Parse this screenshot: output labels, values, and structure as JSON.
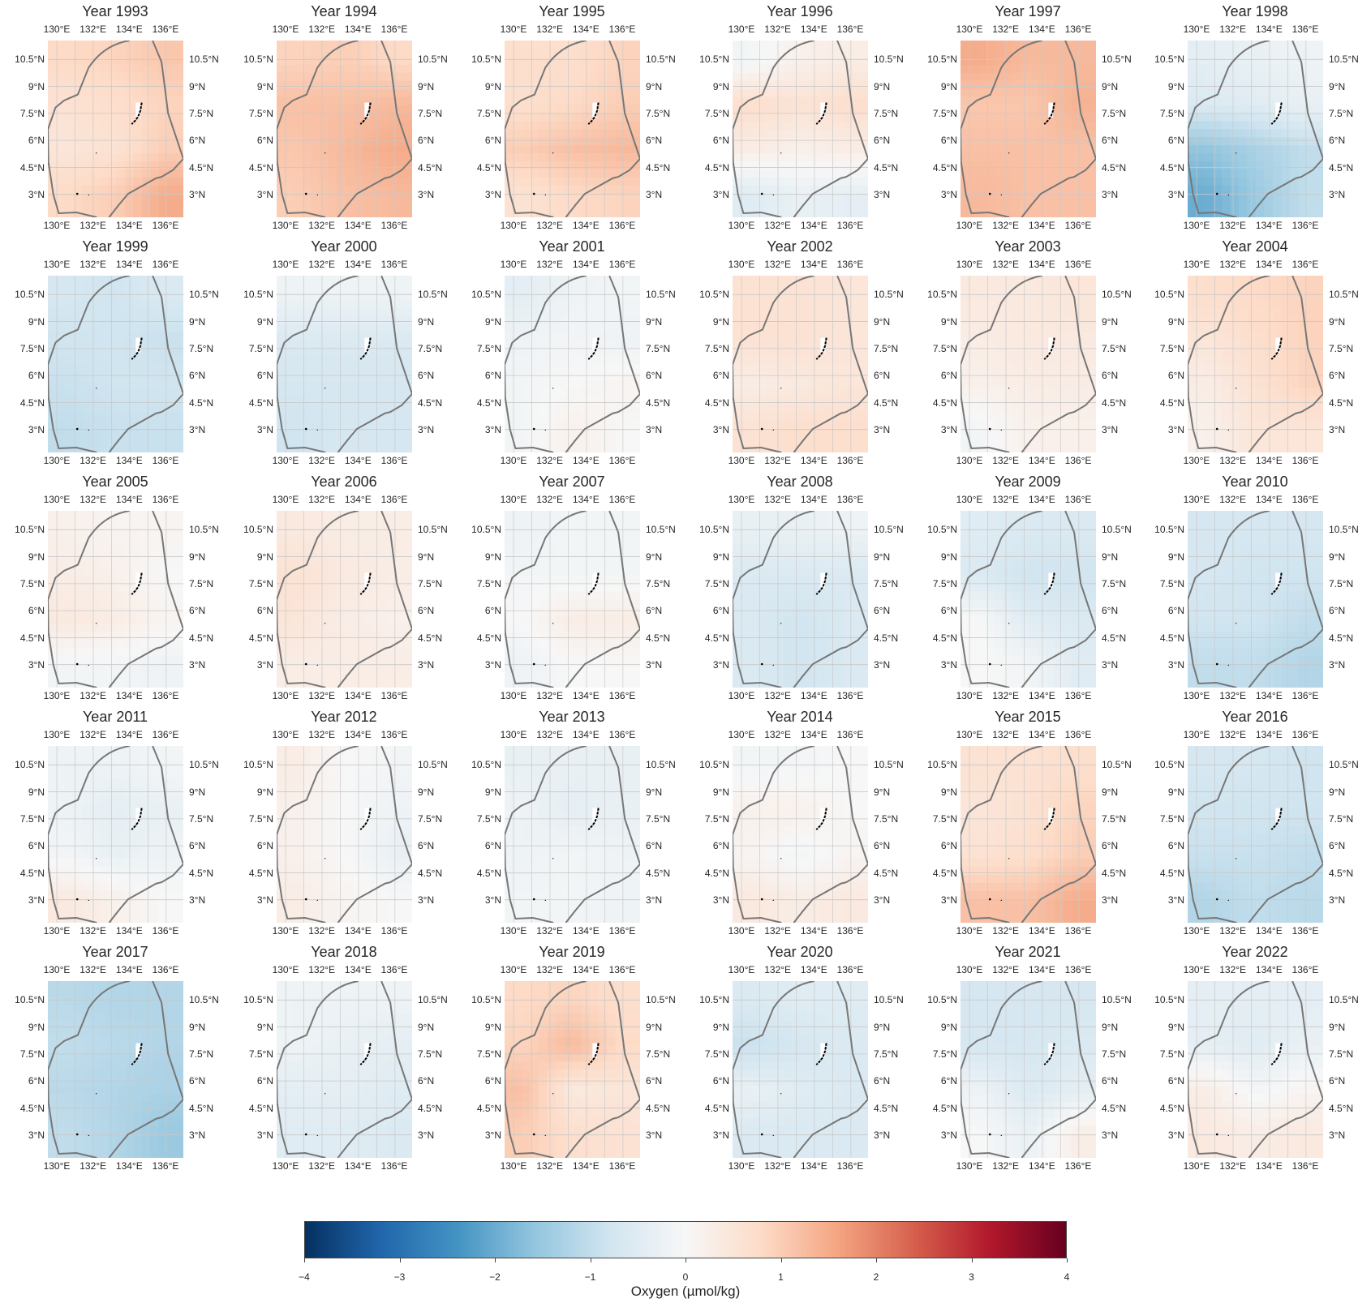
{
  "chart_data": {
    "type": "heatmap",
    "layout": "6x5 small-multiple maps",
    "lon_ticks": [
      "130°E",
      "132°E",
      "134°E",
      "136°E"
    ],
    "lat_ticks": [
      "3°N",
      "4.5°N",
      "6°N",
      "7.5°N",
      "9°N",
      "10.5°N"
    ],
    "lon_range": [
      129.5,
      137.0
    ],
    "lat_range": [
      1.7,
      11.55
    ],
    "grid": true,
    "note_grid_values": "coarse estimated anomaly field, rows north-to-south (approx 10.5N, 8N, 5.5N, 3N), cols west/center/east",
    "colorbar": {
      "label": "Oxygen (µmol/kg)",
      "colormap": "RdBu_r",
      "range": [
        -4,
        4
      ],
      "ticks": [
        "−4",
        "−3",
        "−2",
        "−1",
        "0",
        "1",
        "2",
        "3",
        "4"
      ],
      "colors": [
        "#053061",
        "#2166ac",
        "#4393c3",
        "#92c5de",
        "#d1e5f0",
        "#f7f7f7",
        "#fddbc7",
        "#f4a582",
        "#d6604d",
        "#b2182b",
        "#67001f"
      ]
    },
    "panels": [
      {
        "title": "Year 1993",
        "field": [
          [
            0.8,
            0.9,
            1.1
          ],
          [
            0.6,
            0.7,
            0.9
          ],
          [
            0.5,
            0.6,
            1.0
          ],
          [
            0.8,
            1.0,
            1.5
          ]
        ]
      },
      {
        "title": "Year 1994",
        "field": [
          [
            0.9,
            1.0,
            0.8
          ],
          [
            1.2,
            1.2,
            1.3
          ],
          [
            1.1,
            1.3,
            1.5
          ],
          [
            1.0,
            1.2,
            1.3
          ]
        ]
      },
      {
        "title": "Year 1995",
        "field": [
          [
            0.7,
            0.7,
            0.9
          ],
          [
            0.7,
            0.8,
            1.0
          ],
          [
            1.0,
            1.2,
            1.3
          ],
          [
            0.6,
            0.8,
            0.9
          ]
        ]
      },
      {
        "title": "Year 1996",
        "field": [
          [
            -0.1,
            0.2,
            0.3
          ],
          [
            0.7,
            0.6,
            0.7
          ],
          [
            0.3,
            0.2,
            0.3
          ],
          [
            -0.5,
            -0.3,
            -0.4
          ]
        ]
      },
      {
        "title": "Year 1997",
        "field": [
          [
            1.5,
            1.3,
            1.3
          ],
          [
            1.1,
            1.1,
            1.4
          ],
          [
            1.2,
            1.2,
            1.2
          ],
          [
            1.3,
            1.2,
            1.2
          ]
        ]
      },
      {
        "title": "Year 1998",
        "field": [
          [
            -0.4,
            -0.3,
            -0.2
          ],
          [
            -0.6,
            -0.5,
            -0.3
          ],
          [
            -1.6,
            -1.3,
            -1.0
          ],
          [
            -2.0,
            -1.5,
            -1.0
          ]
        ]
      },
      {
        "title": "Year 1999",
        "field": [
          [
            -0.7,
            -0.8,
            -0.6
          ],
          [
            -0.8,
            -0.8,
            -0.9
          ],
          [
            -0.9,
            -0.8,
            -0.8
          ],
          [
            -1.0,
            -0.9,
            -0.9
          ]
        ]
      },
      {
        "title": "Year 2000",
        "field": [
          [
            -0.2,
            -0.2,
            -0.2
          ],
          [
            -0.6,
            -0.6,
            -0.6
          ],
          [
            -0.7,
            -0.7,
            -0.7
          ],
          [
            -0.8,
            -0.7,
            -0.7
          ]
        ]
      },
      {
        "title": "Year 2001",
        "field": [
          [
            -0.4,
            -0.2,
            -0.1
          ],
          [
            -0.2,
            -0.1,
            -0.2
          ],
          [
            -0.1,
            0.0,
            0.1
          ],
          [
            -0.1,
            0.2,
            0.0
          ]
        ]
      },
      {
        "title": "Year 2002",
        "field": [
          [
            0.6,
            0.6,
            0.5
          ],
          [
            0.6,
            0.6,
            0.5
          ],
          [
            0.3,
            0.4,
            0.5
          ],
          [
            0.6,
            0.7,
            0.7
          ]
        ]
      },
      {
        "title": "Year 2003",
        "field": [
          [
            0.4,
            0.4,
            0.5
          ],
          [
            0.3,
            0.4,
            0.4
          ],
          [
            0.2,
            0.3,
            0.3
          ],
          [
            -0.1,
            0.2,
            0.2
          ]
        ]
      },
      {
        "title": "Year 2004",
        "field": [
          [
            0.7,
            0.8,
            0.9
          ],
          [
            0.5,
            0.7,
            0.9
          ],
          [
            0.3,
            0.6,
            0.9
          ],
          [
            0.2,
            0.5,
            0.5
          ]
        ]
      },
      {
        "title": "Year 2005",
        "field": [
          [
            0.2,
            0.1,
            0.1
          ],
          [
            0.3,
            0.2,
            0.0
          ],
          [
            0.4,
            0.3,
            0.1
          ],
          [
            -0.1,
            -0.1,
            -0.2
          ]
        ]
      },
      {
        "title": "Year 2006",
        "field": [
          [
            0.4,
            0.3,
            0.3
          ],
          [
            0.6,
            0.4,
            0.3
          ],
          [
            0.5,
            0.3,
            0.2
          ],
          [
            0.3,
            0.3,
            0.3
          ]
        ]
      },
      {
        "title": "Year 2007",
        "field": [
          [
            -0.2,
            -0.1,
            -0.1
          ],
          [
            -0.1,
            -0.1,
            -0.1
          ],
          [
            0.0,
            0.3,
            0.3
          ],
          [
            -0.2,
            0.0,
            0.0
          ]
        ]
      },
      {
        "title": "Year 2008",
        "field": [
          [
            -0.3,
            -0.3,
            -0.2
          ],
          [
            -0.6,
            -0.6,
            -0.6
          ],
          [
            -0.6,
            -0.8,
            -0.6
          ],
          [
            -0.6,
            -0.8,
            -0.6
          ]
        ]
      },
      {
        "title": "Year 2009",
        "field": [
          [
            -0.5,
            -0.6,
            -0.6
          ],
          [
            -0.6,
            -0.8,
            -0.8
          ],
          [
            0.0,
            -0.5,
            -0.6
          ],
          [
            0.0,
            -0.1,
            -0.5
          ]
        ]
      },
      {
        "title": "Year 2010",
        "field": [
          [
            -0.7,
            -0.7,
            -0.7
          ],
          [
            -0.7,
            -0.8,
            -0.8
          ],
          [
            -0.8,
            -0.8,
            -1.0
          ],
          [
            -1.0,
            -1.0,
            -1.2
          ]
        ]
      },
      {
        "title": "Year 2011",
        "field": [
          [
            -0.2,
            -0.2,
            -0.1
          ],
          [
            -0.2,
            -0.4,
            -0.3
          ],
          [
            -0.1,
            -0.3,
            -0.2
          ],
          [
            0.4,
            0.2,
            0.0
          ]
        ]
      },
      {
        "title": "Year 2012",
        "field": [
          [
            0.3,
            0.0,
            -0.1
          ],
          [
            0.2,
            0.0,
            -0.2
          ],
          [
            0.2,
            0.0,
            -0.3
          ],
          [
            0.3,
            0.1,
            0.0
          ]
        ]
      },
      {
        "title": "Year 2013",
        "field": [
          [
            -0.3,
            -0.3,
            -0.3
          ],
          [
            -0.2,
            -0.4,
            -0.3
          ],
          [
            -0.2,
            -0.1,
            -0.2
          ],
          [
            -0.1,
            -0.1,
            -0.2
          ]
        ]
      },
      {
        "title": "Year 2014",
        "field": [
          [
            -0.1,
            -0.1,
            0.0
          ],
          [
            0.2,
            0.2,
            0.0
          ],
          [
            0.1,
            -0.1,
            0.1
          ],
          [
            0.4,
            0.3,
            0.4
          ]
        ]
      },
      {
        "title": "Year 2015",
        "field": [
          [
            0.6,
            0.6,
            0.7
          ],
          [
            0.5,
            0.6,
            0.9
          ],
          [
            0.6,
            0.7,
            1.0
          ],
          [
            1.2,
            1.2,
            1.5
          ]
        ]
      },
      {
        "title": "Year 2016",
        "field": [
          [
            -0.7,
            -0.7,
            -0.8
          ],
          [
            -0.8,
            -0.8,
            -0.8
          ],
          [
            -0.9,
            -0.9,
            -1.0
          ],
          [
            -1.2,
            -1.0,
            -1.1
          ]
        ]
      },
      {
        "title": "Year 2017",
        "field": [
          [
            -1.1,
            -1.2,
            -1.2
          ],
          [
            -1.0,
            -1.1,
            -1.2
          ],
          [
            -1.1,
            -1.2,
            -1.3
          ],
          [
            -1.0,
            -1.2,
            -1.5
          ]
        ]
      },
      {
        "title": "Year 2018",
        "field": [
          [
            -0.2,
            -0.2,
            -0.2
          ],
          [
            -0.2,
            -0.3,
            -0.4
          ],
          [
            -0.4,
            -0.4,
            -0.5
          ],
          [
            -0.5,
            -0.5,
            -0.6
          ]
        ]
      },
      {
        "title": "Year 2019",
        "field": [
          [
            0.8,
            0.9,
            0.7
          ],
          [
            0.9,
            1.3,
            0.8
          ],
          [
            1.2,
            0.4,
            0.5
          ],
          [
            1.0,
            0.7,
            0.6
          ]
        ]
      },
      {
        "title": "Year 2020",
        "field": [
          [
            -0.6,
            -0.5,
            -0.5
          ],
          [
            -0.9,
            -0.7,
            -0.6
          ],
          [
            -0.3,
            -0.5,
            -0.6
          ],
          [
            -0.6,
            -0.6,
            -0.6
          ]
        ]
      },
      {
        "title": "Year 2021",
        "field": [
          [
            -0.7,
            -0.7,
            -0.7
          ],
          [
            -0.7,
            -0.7,
            -0.6
          ],
          [
            -0.2,
            -0.6,
            -0.4
          ],
          [
            0.0,
            -0.3,
            0.3
          ]
        ]
      },
      {
        "title": "Year 2022",
        "field": [
          [
            -0.4,
            -0.4,
            -0.4
          ],
          [
            -0.4,
            -0.5,
            -0.3
          ],
          [
            0.3,
            -0.1,
            0.1
          ],
          [
            0.4,
            0.3,
            0.4
          ]
        ]
      }
    ]
  }
}
